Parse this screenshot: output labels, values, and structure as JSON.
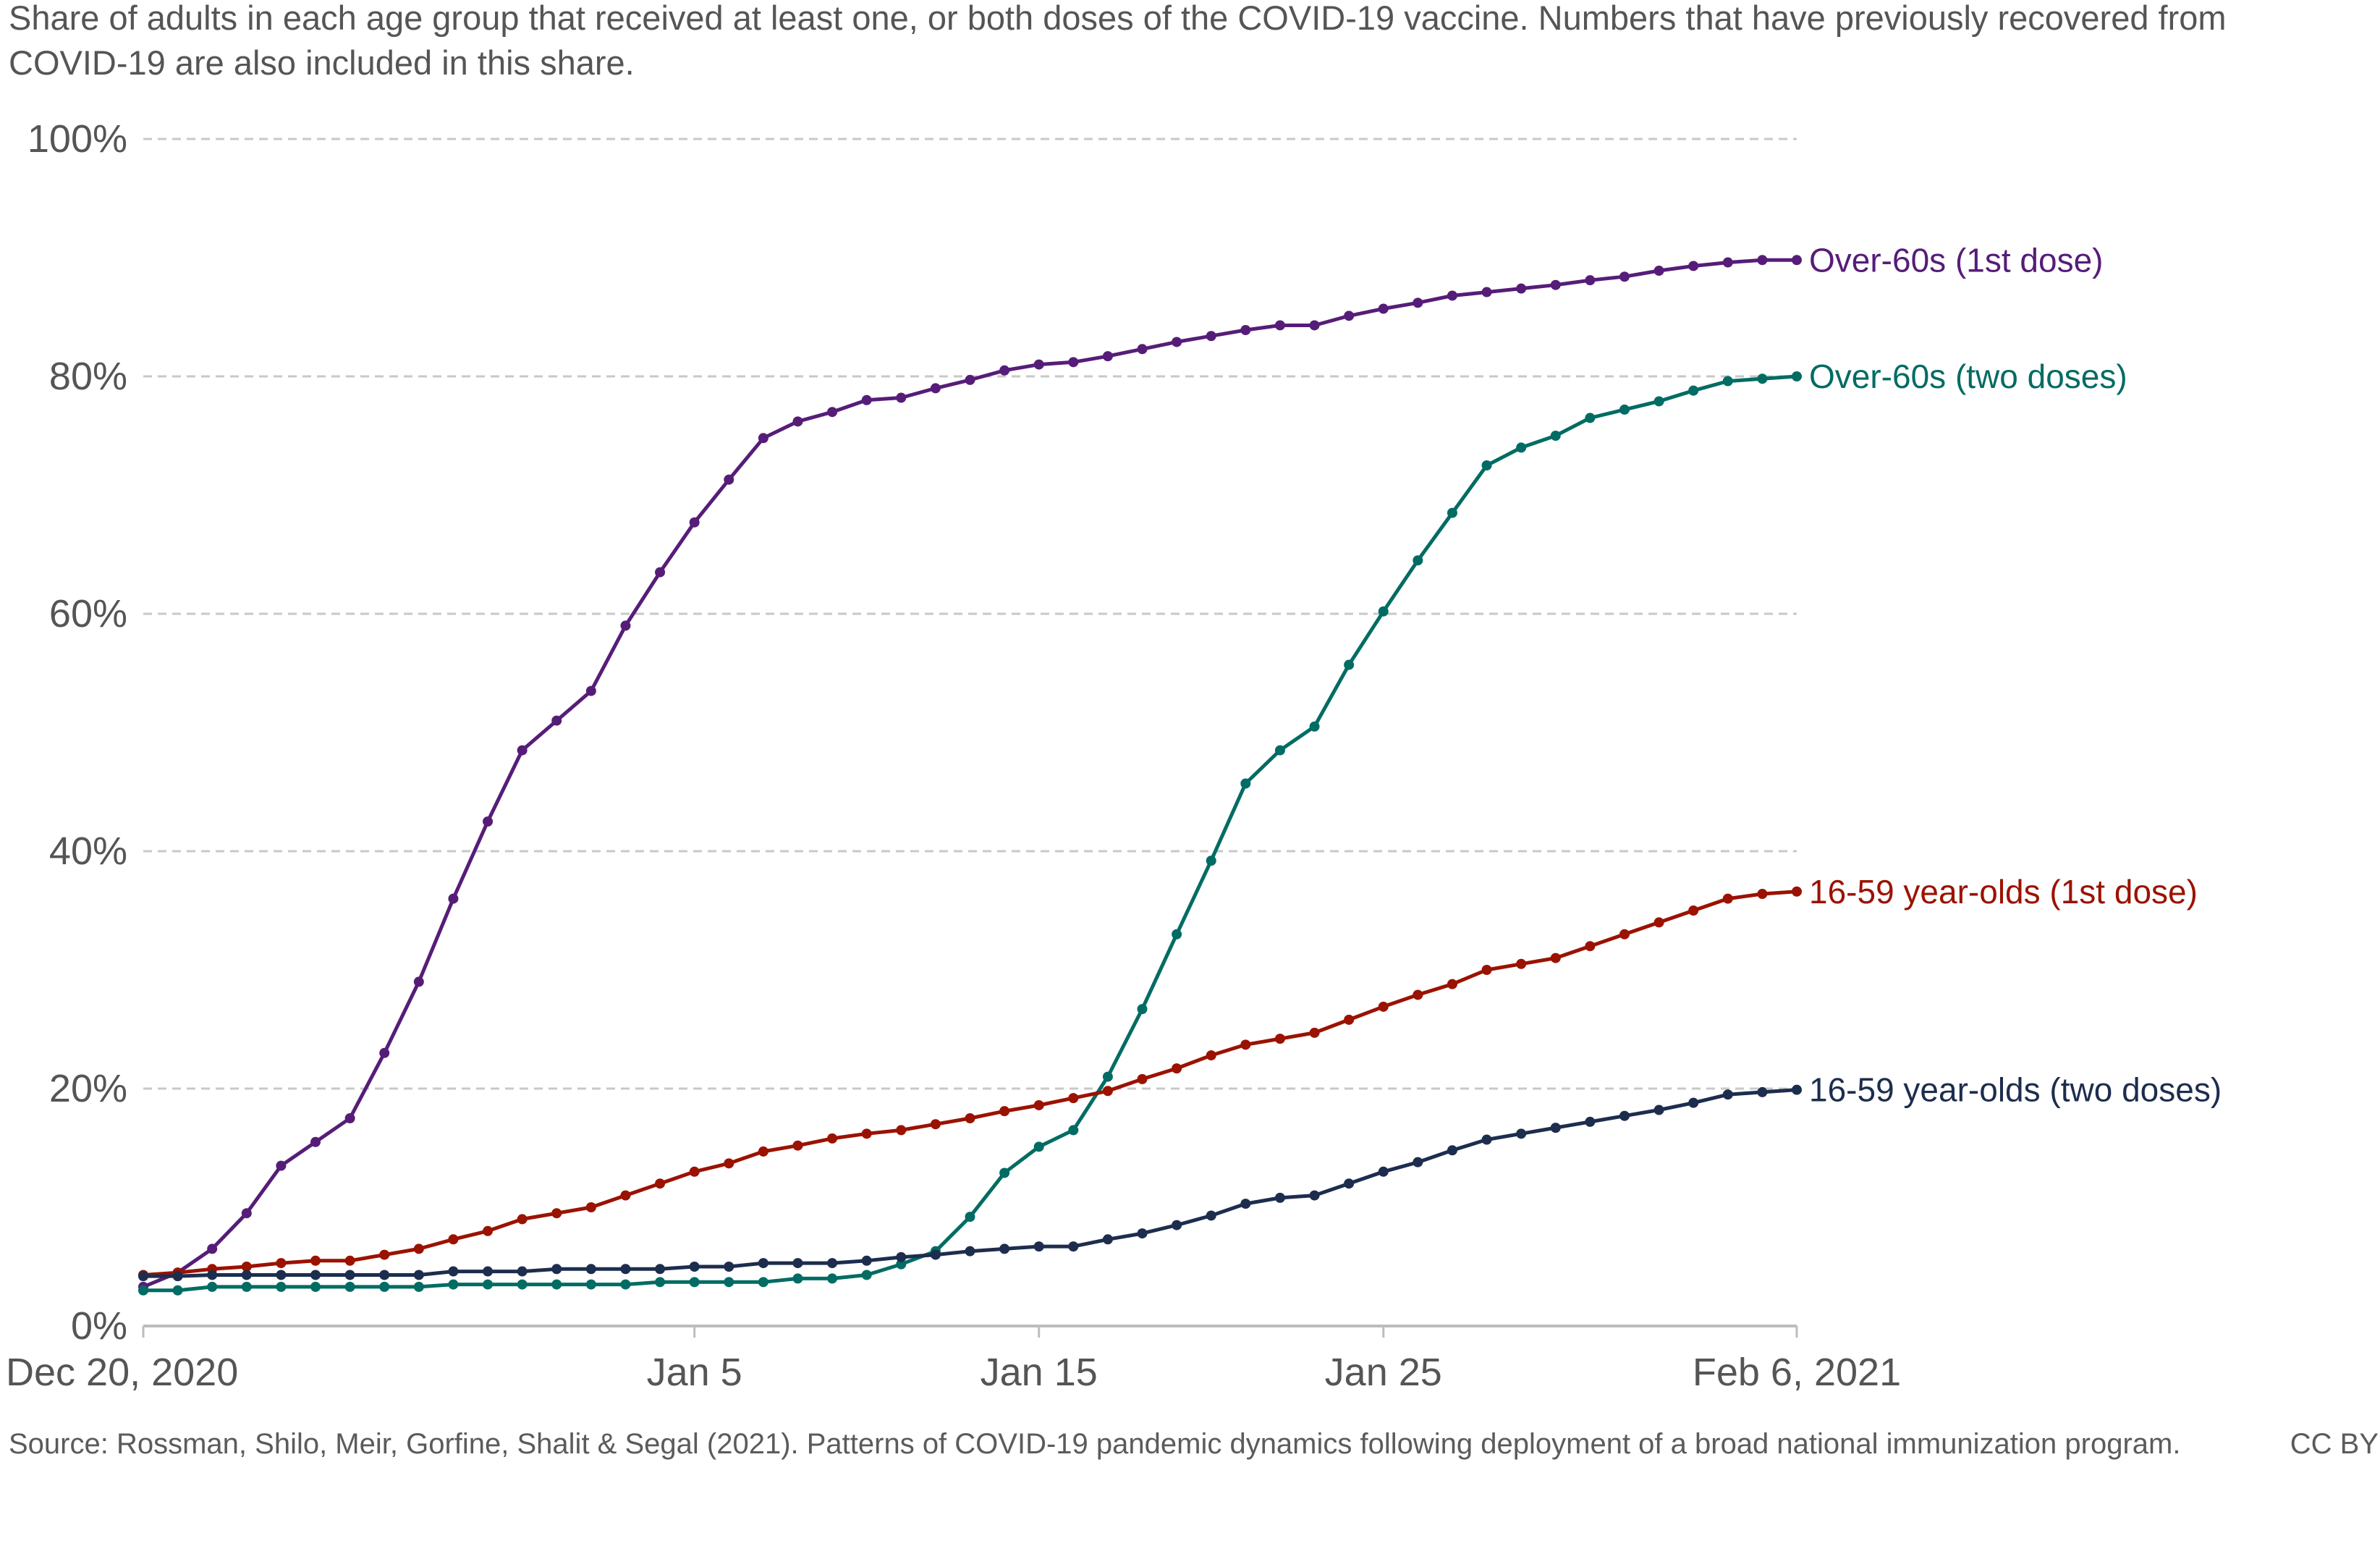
{
  "subtitle": "Share of adults in each age group that received at least one, or both doses of the COVID-19 vaccine. Numbers that have previously recovered from COVID-19 are also included in this share.",
  "footer": {
    "source": "Source: Rossman, Shilo, Meir, Gorfine, Shalit & Segal (2021). Patterns of COVID-19 pandemic dynamics following deployment of a broad national immunization program.",
    "license": "CC BY"
  },
  "chart_data": {
    "type": "line",
    "title": "",
    "subtitle": "Share of adults in each age group that received at least one, or both doses of the COVID-19 vaccine. Numbers that have previously recovered from COVID-19 are also included in this share.",
    "xlabel": "",
    "ylabel": "",
    "x_unit": "days since Dec 20, 2020",
    "xlim": [
      0,
      48
    ],
    "ylim": [
      0,
      100
    ],
    "grid": "horizontal dashed",
    "legend": "inline labels at line ends (right)",
    "x_ticks": [
      {
        "day": 0,
        "label": "Dec 20, 2020"
      },
      {
        "day": 16,
        "label": "Jan 5"
      },
      {
        "day": 26,
        "label": "Jan 15"
      },
      {
        "day": 36,
        "label": "Jan 25"
      },
      {
        "day": 48,
        "label": "Feb 6, 2021"
      }
    ],
    "y_ticks": [
      {
        "value": 0,
        "label": "0%"
      },
      {
        "value": 20,
        "label": "20%"
      },
      {
        "value": 40,
        "label": "40%"
      },
      {
        "value": 60,
        "label": "60%"
      },
      {
        "value": 80,
        "label": "80%"
      },
      {
        "value": 100,
        "label": "100%"
      }
    ],
    "series": [
      {
        "name": "Over-60s (1st dose)",
        "color": "#561d78",
        "values": [
          3.3,
          4.5,
          6.5,
          9.5,
          13.5,
          15.5,
          17.5,
          23,
          29,
          36,
          42.5,
          48.5,
          51,
          53.5,
          59,
          63.5,
          67.7,
          71.3,
          74.8,
          76.2,
          77,
          78,
          78.2,
          79,
          79.7,
          80.5,
          81,
          81.2,
          81.7,
          82.3,
          82.9,
          83.4,
          83.9,
          84.3,
          84.3,
          85.1,
          85.7,
          86.2,
          86.8,
          87.1,
          87.4,
          87.7,
          88.1,
          88.4,
          88.9,
          89.3,
          89.6,
          89.8,
          89.8
        ]
      },
      {
        "name": "Over-60s (two doses)",
        "color": "#006c63",
        "values": [
          3,
          3,
          3.3,
          3.3,
          3.3,
          3.3,
          3.3,
          3.3,
          3.3,
          3.5,
          3.5,
          3.5,
          3.5,
          3.5,
          3.5,
          3.7,
          3.7,
          3.7,
          3.7,
          4,
          4,
          4.3,
          5.2,
          6.3,
          9.2,
          12.9,
          15.1,
          16.5,
          21,
          26.7,
          33,
          39.2,
          45.7,
          48.5,
          50.5,
          55.7,
          60.2,
          64.5,
          68.5,
          72.5,
          74,
          75,
          76.5,
          77.2,
          77.9,
          78.8,
          79.6,
          79.8,
          80
        ]
      },
      {
        "name": "16-59 year-olds (1st dose)",
        "color": "#9b1200",
        "values": [
          4.3,
          4.5,
          4.8,
          5,
          5.3,
          5.5,
          5.5,
          6,
          6.5,
          7.3,
          8,
          9,
          9.5,
          10,
          11,
          12,
          13,
          13.7,
          14.7,
          15.2,
          15.8,
          16.2,
          16.5,
          17,
          17.5,
          18.1,
          18.6,
          19.2,
          19.8,
          20.8,
          21.7,
          22.8,
          23.7,
          24.2,
          24.7,
          25.8,
          26.9,
          27.9,
          28.8,
          30,
          30.5,
          31,
          32,
          33,
          34,
          35,
          36,
          36.4,
          36.6
        ]
      },
      {
        "name": "16-59 year-olds (two doses)",
        "color": "#1d2d4e",
        "values": [
          4.2,
          4.2,
          4.3,
          4.3,
          4.3,
          4.3,
          4.3,
          4.3,
          4.3,
          4.6,
          4.6,
          4.6,
          4.8,
          4.8,
          4.8,
          4.8,
          5,
          5,
          5.3,
          5.3,
          5.3,
          5.5,
          5.8,
          6,
          6.3,
          6.5,
          6.7,
          6.7,
          7.3,
          7.8,
          8.5,
          9.3,
          10.3,
          10.8,
          11,
          12,
          13,
          13.8,
          14.8,
          15.7,
          16.2,
          16.7,
          17.2,
          17.7,
          18.2,
          18.8,
          19.5,
          19.7,
          19.9
        ]
      }
    ]
  }
}
